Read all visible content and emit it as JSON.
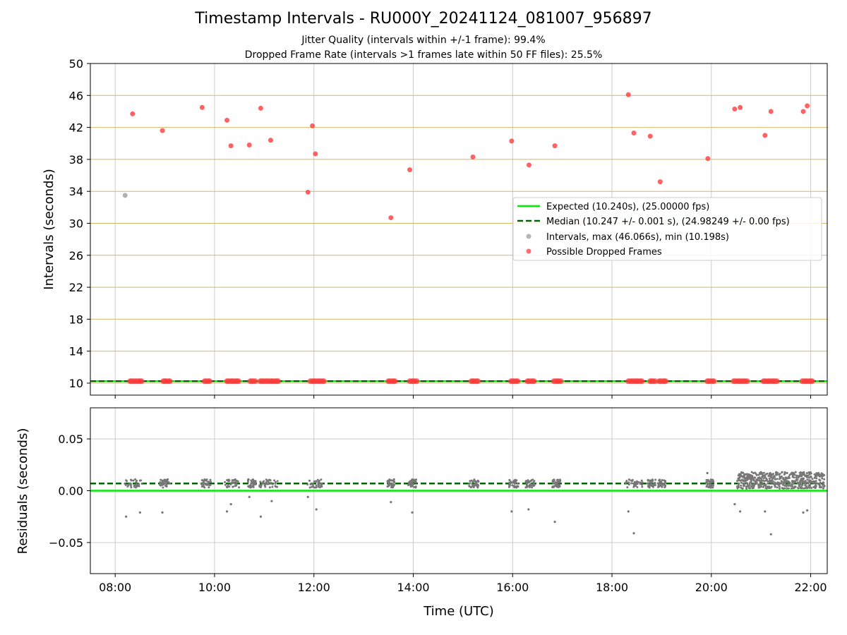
{
  "figure": {
    "title": "Timestamp Intervals - RU000Y_20241124_081007_956897",
    "subtitle_1": "Jitter Quality (intervals within +/-1 frame): 99.4%",
    "subtitle_2": "Dropped Frame Rate (intervals >1 frames late within 50 FF files): 25.5%"
  },
  "colors": {
    "expected": "#00ee00",
    "median": "#006400",
    "intervals": "#9e9e9e",
    "dropped": "#ff3b3b",
    "residuals": "#777777",
    "hgrid_top": "#d4b96a",
    "grid": "#cccccc"
  },
  "chart_data": [
    {
      "type": "scatter",
      "panel": "intervals",
      "ylabel": "Intervals (seconds)",
      "ylim": [
        8.5,
        50
      ],
      "yticks": [
        "10",
        "14",
        "18",
        "22",
        "26",
        "30",
        "34",
        "38",
        "42",
        "46",
        "50"
      ],
      "xlim_hours": [
        7.5,
        22.333
      ],
      "grid": "on",
      "legend_position": "center-right",
      "legend": [
        "Expected (10.240s), (25.00000 fps)",
        "Median (10.247 +/- 0.001 s), (24.98249 +/- 0.00 fps)",
        "Intervals, max (46.066s), min (10.198s)",
        "Possible Dropped Frames"
      ],
      "expected": 10.24,
      "median": 10.247,
      "series": [
        {
          "role": "intervals",
          "x_hours": [
            8.2
          ],
          "y": [
            33.5
          ]
        },
        {
          "role": "dropped",
          "x_hours": [
            8.35,
            8.95,
            9.75,
            10.25,
            10.33,
            10.7,
            10.93,
            11.13,
            11.88,
            11.97,
            12.03,
            13.55,
            13.93,
            15.2,
            15.98,
            16.33,
            16.85,
            18.33,
            18.44,
            18.77,
            18.97,
            19.93,
            20.47,
            20.58,
            21.08,
            21.2,
            21.85,
            21.93
          ],
          "y": [
            43.7,
            41.6,
            44.5,
            42.9,
            39.7,
            39.8,
            44.4,
            40.4,
            33.9,
            42.2,
            38.7,
            30.7,
            36.7,
            38.3,
            40.3,
            37.3,
            39.7,
            46.1,
            41.3,
            40.9,
            35.2,
            38.1,
            44.3,
            44.5,
            41.0,
            44.0,
            44.0,
            44.7
          ]
        },
        {
          "role": "dropped-baseline",
          "x_hours": [
            8.3,
            8.33,
            8.36,
            8.4,
            8.43,
            8.47,
            8.5,
            8.53,
            8.97,
            9.0,
            9.03,
            9.07,
            9.1,
            9.8,
            9.83,
            9.87,
            9.9,
            10.25,
            10.28,
            10.32,
            10.35,
            10.38,
            10.42,
            10.45,
            10.48,
            10.72,
            10.75,
            10.78,
            10.82,
            10.92,
            10.95,
            10.98,
            11.02,
            11.05,
            11.08,
            11.12,
            11.15,
            11.18,
            11.22,
            11.25,
            11.28,
            11.93,
            11.97,
            12.0,
            12.03,
            12.07,
            12.1,
            12.13,
            12.17,
            12.2,
            13.5,
            13.53,
            13.57,
            13.6,
            13.63,
            13.93,
            13.97,
            14.0,
            14.03,
            14.07,
            15.17,
            15.2,
            15.23,
            15.27,
            15.3,
            15.97,
            16.0,
            16.03,
            16.07,
            16.1,
            16.3,
            16.33,
            16.37,
            16.4,
            16.43,
            16.83,
            16.87,
            16.9,
            16.93,
            16.97,
            18.33,
            18.37,
            18.4,
            18.43,
            18.47,
            18.5,
            18.53,
            18.57,
            18.6,
            18.77,
            18.8,
            18.83,
            18.87,
            18.95,
            18.98,
            19.02,
            19.05,
            19.08,
            19.92,
            19.95,
            19.98,
            20.02,
            20.05,
            20.45,
            20.48,
            20.52,
            20.55,
            20.58,
            20.62,
            20.65,
            20.68,
            20.72,
            21.05,
            21.08,
            21.12,
            21.15,
            21.18,
            21.22,
            21.25,
            21.28,
            21.32,
            21.83,
            21.87,
            21.9,
            21.93,
            21.97,
            22.0,
            22.03
          ],
          "y_value": 10.24
        }
      ]
    },
    {
      "type": "scatter",
      "panel": "residuals",
      "xlabel": "Time (UTC)",
      "ylabel": "Residuals (seconds)",
      "ylim": [
        -0.08,
        0.08
      ],
      "yticks": [
        "0.05",
        "0.00",
        "−0.05"
      ],
      "xticks": [
        "08:00",
        "10:00",
        "12:00",
        "14:00",
        "16:00",
        "18:00",
        "20:00",
        "22:00"
      ],
      "grid": "on",
      "expected": 0.0,
      "median": 0.007,
      "clusters": [
        {
          "center_hours": 8.35,
          "halfwidth": 0.2
        },
        {
          "center_hours": 9.0,
          "halfwidth": 0.1
        },
        {
          "center_hours": 9.83,
          "halfwidth": 0.1
        },
        {
          "center_hours": 10.35,
          "halfwidth": 0.15
        },
        {
          "center_hours": 10.75,
          "halfwidth": 0.08
        },
        {
          "center_hours": 11.1,
          "halfwidth": 0.2
        },
        {
          "center_hours": 12.02,
          "halfwidth": 0.15
        },
        {
          "center_hours": 13.55,
          "halfwidth": 0.08
        },
        {
          "center_hours": 13.98,
          "halfwidth": 0.08
        },
        {
          "center_hours": 15.22,
          "halfwidth": 0.1
        },
        {
          "center_hours": 16.03,
          "halfwidth": 0.1
        },
        {
          "center_hours": 16.35,
          "halfwidth": 0.1
        },
        {
          "center_hours": 16.88,
          "halfwidth": 0.08
        },
        {
          "center_hours": 18.45,
          "halfwidth": 0.18
        },
        {
          "center_hours": 18.8,
          "halfwidth": 0.08
        },
        {
          "center_hours": 19.0,
          "halfwidth": 0.08
        },
        {
          "center_hours": 19.97,
          "halfwidth": 0.08
        },
        {
          "center_hours": 21.4,
          "halfwidth": 0.88,
          "spread": 0.016
        }
      ],
      "outliers": {
        "x_hours": [
          8.22,
          8.5,
          8.95,
          10.25,
          10.33,
          10.7,
          10.93,
          11.15,
          11.88,
          12.05,
          13.55,
          13.98,
          15.98,
          16.32,
          16.85,
          18.33,
          18.44,
          19.92,
          20.47,
          20.58,
          21.08,
          21.2,
          21.85,
          21.93
        ],
        "y": [
          -0.025,
          -0.021,
          -0.021,
          -0.02,
          -0.013,
          -0.006,
          -0.025,
          -0.01,
          -0.006,
          -0.018,
          -0.011,
          -0.021,
          -0.02,
          -0.018,
          -0.03,
          -0.02,
          -0.041,
          0.017,
          -0.013,
          -0.02,
          -0.02,
          -0.042,
          -0.021,
          -0.019
        ]
      }
    }
  ]
}
